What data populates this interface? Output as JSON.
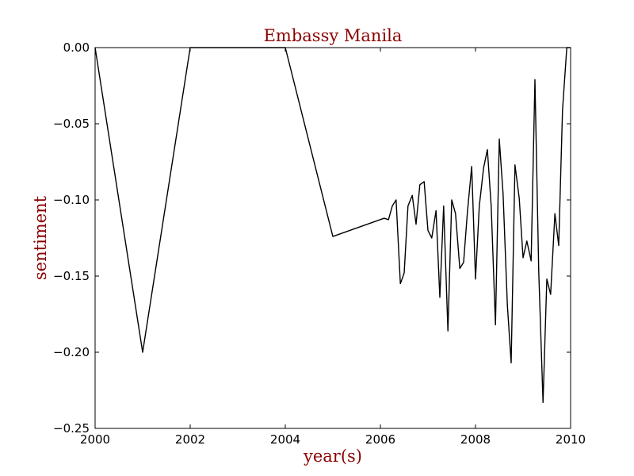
{
  "chart_data": {
    "type": "line",
    "title": "Embassy Manila",
    "xlabel": "year(s)",
    "ylabel": "sentiment",
    "xlim": [
      2000,
      2010
    ],
    "ylim": [
      -0.25,
      0.0
    ],
    "xticks": [
      2000,
      2002,
      2004,
      2006,
      2008,
      2010
    ],
    "xtick_labels": [
      "2000",
      "2002",
      "2004",
      "2006",
      "2008",
      "2010"
    ],
    "yticks": [
      0.0,
      -0.05,
      -0.1,
      -0.15,
      -0.2,
      -0.25
    ],
    "ytick_labels": [
      "0.00",
      "−0.05",
      "−0.10",
      "−0.15",
      "−0.20",
      "−0.25"
    ],
    "grid": false,
    "legend": null,
    "series": [
      {
        "color": "#000000",
        "x": [
          2000.0,
          2001.0,
          2002.0,
          2004.0,
          2005.0,
          2006.08,
          2006.17,
          2006.25,
          2006.33,
          2006.42,
          2006.5,
          2006.58,
          2006.67,
          2006.75,
          2006.83,
          2006.92,
          2007.0,
          2007.08,
          2007.17,
          2007.25,
          2007.33,
          2007.42,
          2007.5,
          2007.58,
          2007.67,
          2007.75,
          2007.83,
          2007.92,
          2008.0,
          2008.08,
          2008.17,
          2008.25,
          2008.33,
          2008.42,
          2008.5,
          2008.58,
          2008.67,
          2008.75,
          2008.83,
          2008.92,
          2009.0,
          2009.08,
          2009.17,
          2009.25,
          2009.33,
          2009.42,
          2009.5,
          2009.58,
          2009.67,
          2009.75,
          2009.83,
          2009.92,
          2010.0
        ],
        "y": [
          0.0,
          -0.2,
          0.0,
          0.0,
          -0.124,
          -0.112,
          -0.113,
          -0.104,
          -0.1,
          -0.155,
          -0.148,
          -0.104,
          -0.097,
          -0.116,
          -0.09,
          -0.088,
          -0.12,
          -0.125,
          -0.107,
          -0.164,
          -0.104,
          -0.186,
          -0.1,
          -0.109,
          -0.145,
          -0.141,
          -0.108,
          -0.078,
          -0.152,
          -0.104,
          -0.079,
          -0.067,
          -0.104,
          -0.182,
          -0.06,
          -0.096,
          -0.169,
          -0.207,
          -0.077,
          -0.099,
          -0.138,
          -0.127,
          -0.14,
          -0.021,
          -0.147,
          -0.233,
          -0.152,
          -0.162,
          -0.109,
          -0.13,
          -0.041,
          0.0,
          0.0
        ]
      }
    ]
  }
}
